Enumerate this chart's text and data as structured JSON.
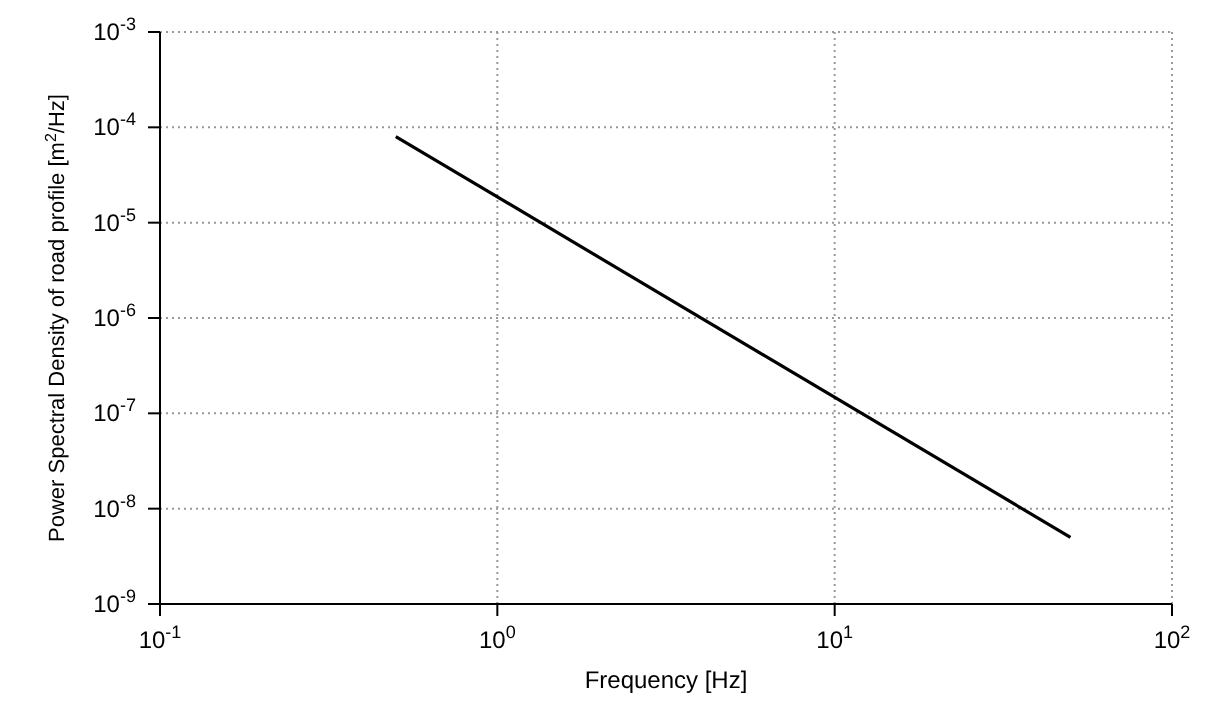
{
  "chart_data": {
    "type": "line",
    "xlabel": "Frequency [Hz]",
    "ylabel": "Power Spectral Density of road profile [m$^{2}$/Hz]",
    "x": [
      0.5,
      50
    ],
    "series": [
      {
        "color": "#000000",
        "values": [
          8e-05,
          5e-09
        ]
      }
    ],
    "log": "xy",
    "grid": true,
    "marker": "none",
    "line_style": "solid",
    "xlim": [
      0.1,
      100
    ],
    "xticks": [
      {
        "value": 0.1,
        "label": "10$^{-1}$"
      },
      {
        "value": 1,
        "label": "10$^{0}$"
      },
      {
        "value": 10,
        "label": "10$^{1}$"
      },
      {
        "value": 100,
        "label": "10$^{2}$"
      }
    ],
    "ylim": [
      1e-09,
      0.001
    ],
    "yticks": [
      {
        "value": 1e-09,
        "label": "10$^{-9}$"
      },
      {
        "value": 1e-08,
        "label": "10$^{-8}$"
      },
      {
        "value": 1e-07,
        "label": "10$^{-7}$"
      },
      {
        "value": 1e-06,
        "label": "10$^{-6}$"
      },
      {
        "value": 1e-05,
        "label": "10$^{-5}$"
      },
      {
        "value": 0.0001,
        "label": "10$^{-4}$"
      },
      {
        "value": 0.001,
        "label": "10$^{-3}$"
      }
    ]
  }
}
